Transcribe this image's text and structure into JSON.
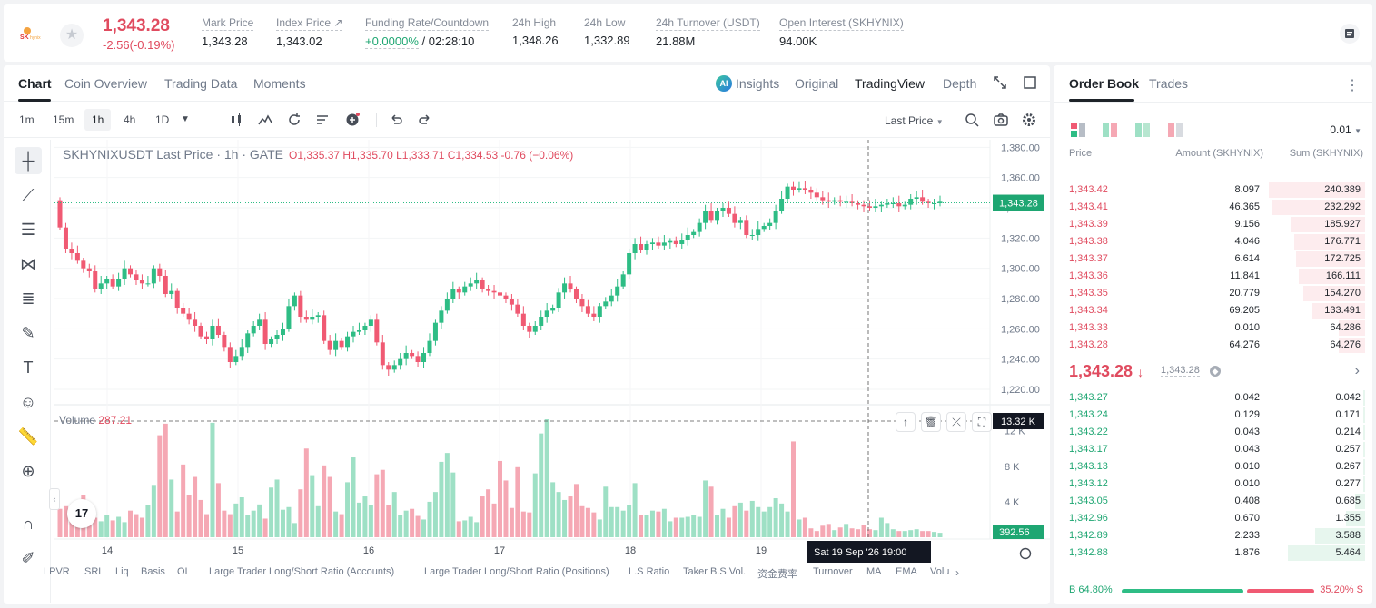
{
  "header": {
    "logo_icon": "sk-hynix-logo",
    "last_price": "1,343.28",
    "price_change": "-2.56(-0.19%)",
    "stats": [
      {
        "label": "Mark Price",
        "value": "1,343.28"
      },
      {
        "label": "Index Price ↗",
        "value": "1,343.02"
      },
      {
        "label": "Funding Rate/Countdown",
        "value_rate": "+0.0000%",
        "value_countdown": " / 02:28:10"
      },
      {
        "label": "24h High",
        "value": "1,348.26"
      },
      {
        "label": "24h Low",
        "value": "1,332.89"
      },
      {
        "label": "24h Turnover (USDT)",
        "value": "21.88M"
      },
      {
        "label": "Open Interest (SKHYNIX)",
        "value": "94.00K"
      }
    ]
  },
  "chart_tabs": [
    "Chart",
    "Coin Overview",
    "Trading Data",
    "Moments"
  ],
  "view_tabs": {
    "insights": "Insights",
    "original": "Original",
    "tradingview": "TradingView",
    "depth": "Depth",
    "ai_badge": "AI"
  },
  "intervals": [
    "1m",
    "15m",
    "1h",
    "4h",
    "1D"
  ],
  "last_price_selector": "Last Price",
  "chart": {
    "legend_title": "SKHYNIXUSDT Last Price · 1h · GATE",
    "ohlc": "O1,335.37 H1,335.70 L1,333.71 C1,334.53 -0.76 (−0.06%)",
    "volume_label": "Volume",
    "volume_value": "287.21",
    "price_marker": "1,343.28",
    "volume_marker_top": "13.32 K",
    "volume_marker": "392.56",
    "crosshair_time": "Sat 19 Sep '26   19:00",
    "tv_logo": "17"
  },
  "chart_data": {
    "type": "candlestick",
    "price_ticks": [
      "1,380.00",
      "1,360.00",
      "1,340.00",
      "1,320.00",
      "1,300.00",
      "1,280.00",
      "1,260.00",
      "1,240.00",
      "1,220.00"
    ],
    "price_tick_values": [
      1380,
      1360,
      1340,
      1320,
      1300,
      1280,
      1260,
      1240,
      1220
    ],
    "volume_ticks": [
      "12 K",
      "8 K",
      "4 K"
    ],
    "volume_tick_values": [
      12000,
      8000,
      4000
    ],
    "x_ticks": [
      "14",
      "15",
      "16",
      "17",
      "18",
      "19"
    ],
    "last_price": 1343.28,
    "closes": [
      1327,
      1313,
      1310,
      1305,
      1300,
      1298,
      1286,
      1290,
      1293,
      1288,
      1293,
      1300,
      1296,
      1292,
      1290,
      1290,
      1300,
      1295,
      1283,
      1285,
      1274,
      1270,
      1266,
      1262,
      1255,
      1253,
      1262,
      1256,
      1248,
      1238,
      1242,
      1248,
      1257,
      1262,
      1266,
      1250,
      1253,
      1256,
      1260,
      1275,
      1282,
      1268,
      1266,
      1268,
      1269,
      1252,
      1246,
      1252,
      1248,
      1255,
      1258,
      1259,
      1262,
      1266,
      1251,
      1236,
      1233,
      1236,
      1240,
      1244,
      1242,
      1238,
      1244,
      1252,
      1264,
      1272,
      1280,
      1286,
      1284,
      1288,
      1290,
      1292,
      1286,
      1285,
      1284,
      1282,
      1280,
      1276,
      1270,
      1262,
      1258,
      1262,
      1268,
      1272,
      1274,
      1284,
      1290,
      1286,
      1280,
      1275,
      1270,
      1268,
      1275,
      1278,
      1282,
      1288,
      1296,
      1310,
      1316,
      1312,
      1316,
      1317,
      1315,
      1317,
      1318,
      1316,
      1319,
      1322,
      1324,
      1330,
      1338,
      1332,
      1338,
      1340,
      1336,
      1330,
      1332,
      1322,
      1322,
      1326,
      1328,
      1330,
      1338,
      1346,
      1354,
      1352,
      1353,
      1352,
      1350,
      1347,
      1345,
      1344,
      1345,
      1344,
      1344,
      1343,
      1342,
      1341,
      1340,
      1341,
      1342,
      1343,
      1343,
      1341,
      1342,
      1346,
      1347,
      1344,
      1343,
      1343,
      1344
    ],
    "volumes": [
      3200,
      3500,
      2500,
      3000,
      4800,
      2800,
      2200,
      1800,
      2500,
      1900,
      2300,
      1700,
      3000,
      2600,
      2200,
      3600,
      5800,
      11500,
      12800,
      6500,
      2900,
      8200,
      4800,
      6800,
      4200,
      2600,
      12900,
      6100,
      3000,
      2600,
      3800,
      4500,
      2500,
      3000,
      3700,
      2100,
      5600,
      6500,
      3100,
      3400,
      1600,
      5400,
      10000,
      7000,
      3500,
      8100,
      6800,
      2900,
      2600,
      6200,
      9000,
      3900,
      4600,
      3600,
      7100,
      7600,
      3600,
      5100,
      2500,
      3000,
      3200,
      2400,
      2000,
      4000,
      5100,
      8500,
      9500,
      7300,
      1800,
      1900,
      2300,
      1700,
      4600,
      5400,
      3800,
      8600,
      6400,
      3300,
      7900,
      2900,
      2800,
      7200,
      11700,
      13300,
      6200,
      5100,
      4200,
      4600,
      6000,
      3500,
      3300,
      2800,
      2000,
      5700,
      3400,
      3400,
      3000,
      3600,
      6100,
      2500,
      2500,
      3000,
      2900,
      3200,
      1800,
      2200,
      2200,
      2300,
      2500,
      2300,
      6400,
      5700,
      2500,
      3200,
      2200,
      3500,
      3900,
      3000,
      4100,
      3400,
      2900,
      3400,
      4400,
      3800,
      2900,
      10800,
      2000,
      2200,
      1000,
      700,
      1300,
      1500,
      800,
      1100,
      1500,
      1000,
      900,
      1400,
      900,
      800,
      2200,
      1600,
      900,
      700,
      700,
      800,
      900,
      700,
      700,
      600,
      500,
      400
    ]
  },
  "indicators": [
    "LPVR",
    "SRL",
    "Liq",
    "Basis",
    "OI",
    "Large Trader Long/Short Ratio (Accounts)",
    "Large Trader Long/Short Ratio (Positions)",
    "L.S Ratio",
    "Taker B.S Vol.",
    "资金费率",
    "Turnover",
    "MA",
    "EMA",
    "Volu"
  ],
  "orderbook": {
    "tabs": [
      "Order Book",
      "Trades"
    ],
    "tick_size": "0.01",
    "headers": [
      "Price",
      "Amount (SKHYNIX)",
      "Sum (SKHYNIX)"
    ],
    "asks": [
      {
        "price": "1,343.42",
        "amount": "8.097",
        "sum": "240.389",
        "fill": 1.0
      },
      {
        "price": "1,343.41",
        "amount": "46.365",
        "sum": "232.292",
        "fill": 0.97
      },
      {
        "price": "1,343.39",
        "amount": "9.156",
        "sum": "185.927",
        "fill": 0.77
      },
      {
        "price": "1,343.38",
        "amount": "4.046",
        "sum": "176.771",
        "fill": 0.74
      },
      {
        "price": "1,343.37",
        "amount": "6.614",
        "sum": "172.725",
        "fill": 0.72
      },
      {
        "price": "1,343.36",
        "amount": "11.841",
        "sum": "166.111",
        "fill": 0.69
      },
      {
        "price": "1,343.35",
        "amount": "20.779",
        "sum": "154.270",
        "fill": 0.64
      },
      {
        "price": "1,343.34",
        "amount": "69.205",
        "sum": "133.491",
        "fill": 0.56
      },
      {
        "price": "1,343.33",
        "amount": "0.010",
        "sum": "64.286",
        "fill": 0.27
      },
      {
        "price": "1,343.28",
        "amount": "64.276",
        "sum": "64.276",
        "fill": 0.27
      }
    ],
    "mid_price": "1,343.28",
    "mid_arrow": "↓",
    "mid_index": "1,343.28",
    "bids": [
      {
        "price": "1,343.27",
        "amount": "0.042",
        "sum": "0.042",
        "fill": 0.01
      },
      {
        "price": "1,343.24",
        "amount": "0.129",
        "sum": "0.171",
        "fill": 0.01
      },
      {
        "price": "1,343.22",
        "amount": "0.043",
        "sum": "0.214",
        "fill": 0.01
      },
      {
        "price": "1,343.17",
        "amount": "0.043",
        "sum": "0.257",
        "fill": 0.01
      },
      {
        "price": "1,343.13",
        "amount": "0.010",
        "sum": "0.267",
        "fill": 0.01
      },
      {
        "price": "1,343.12",
        "amount": "0.010",
        "sum": "0.277",
        "fill": 0.01
      },
      {
        "price": "1,343.05",
        "amount": "0.408",
        "sum": "0.685",
        "fill": 0.1
      },
      {
        "price": "1,342.96",
        "amount": "0.670",
        "sum": "1.355",
        "fill": 0.2
      },
      {
        "price": "1,342.89",
        "amount": "2.233",
        "sum": "3.588",
        "fill": 0.52
      },
      {
        "price": "1,342.88",
        "amount": "1.876",
        "sum": "5.464",
        "fill": 0.8
      }
    ],
    "buy_ratio": "64.80%",
    "sell_ratio": "35.20%",
    "buy_label": "B",
    "sell_label": "S"
  },
  "colors": {
    "up": "#2ebd85",
    "down": "#f05a73",
    "up_vol": "#9ee0c5",
    "down_vol": "#f5a8b4",
    "accent": "#1e2329"
  }
}
